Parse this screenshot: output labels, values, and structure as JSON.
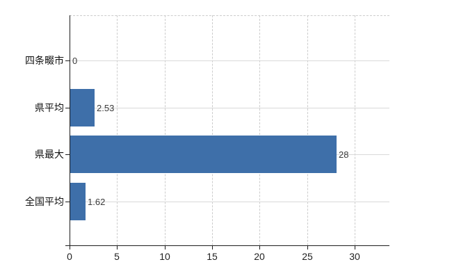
{
  "chart_data": {
    "type": "bar",
    "orientation": "horizontal",
    "categories": [
      "四条畷市",
      "県平均",
      "県最大",
      "全国平均"
    ],
    "values": [
      0,
      2.53,
      28,
      1.62
    ],
    "value_labels": [
      "0",
      "2.53",
      "28",
      "1.62"
    ],
    "x_ticks": [
      0,
      5,
      10,
      15,
      20,
      25,
      30
    ],
    "x_tick_labels": [
      "0",
      "5",
      "10",
      "15",
      "20",
      "25",
      "30"
    ],
    "xlim": [
      0,
      33.7
    ],
    "title": "",
    "xlabel": "",
    "ylabel": "",
    "legend": null,
    "grid": true,
    "bar_color": "#3e6fa9",
    "axis_color": "#1c1c1c",
    "gridline_color": "#d9d9d9"
  }
}
